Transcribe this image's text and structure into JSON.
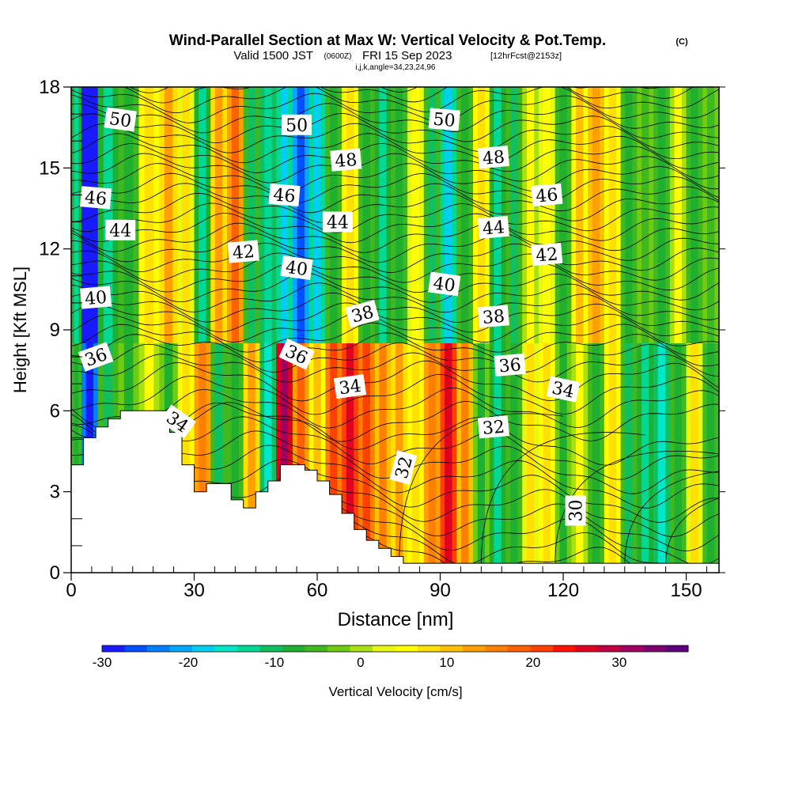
{
  "title": {
    "main": "Wind-Parallel Section at Max W: Vertical Velocity & Pot.Temp.",
    "copyright": "(C)",
    "valid_prefix": "Valid 1500 JST",
    "valid_utc": "(0600Z)",
    "valid_date": "FRI 15 Sep 2023",
    "forecast": "[12hrFcst@2153z]",
    "indices": "i,j,k,angle=34,23,24,96"
  },
  "chart_data": {
    "type": "heatmap",
    "xlabel": "Distance [nm]",
    "ylabel": "Height [Kft MSL]",
    "xlim": [
      0,
      158
    ],
    "ylim": [
      0,
      18
    ],
    "x_ticks": [
      "0",
      "30",
      "60",
      "90",
      "120",
      "150"
    ],
    "y_ticks": [
      "0",
      "3",
      "6",
      "9",
      "12",
      "15",
      "18"
    ],
    "colorbar": {
      "label": "Vertical Velocity [cm/s]",
      "range": [
        -30,
        38
      ],
      "tick_labels": [
        "-30",
        "-20",
        "-10",
        "0",
        "10",
        "20",
        "30"
      ],
      "colors": [
        "#1a1aff",
        "#0050ff",
        "#0080ff",
        "#00a8ff",
        "#00d0f0",
        "#00e8c8",
        "#00d896",
        "#10c060",
        "#20b030",
        "#40b820",
        "#70cc10",
        "#a8e010",
        "#e8f810",
        "#ffff00",
        "#ffe000",
        "#ffc000",
        "#ffa000",
        "#ff8000",
        "#ff6000",
        "#ff4000",
        "#ff1000",
        "#e00020",
        "#c00040",
        "#a00060",
        "#800070",
        "#600080"
      ]
    },
    "velocity_columns": {
      "x_nm": [
        1,
        4,
        9,
        14,
        19,
        24,
        28,
        32,
        36,
        40,
        44,
        48,
        52,
        56,
        60,
        64,
        68,
        72,
        76,
        80,
        84,
        88,
        92,
        96,
        100,
        104,
        108,
        112,
        116,
        120,
        124,
        128,
        132,
        136,
        140,
        144,
        148,
        152,
        156
      ],
      "w_upper_cm_s": [
        -8,
        -30,
        -8,
        -4,
        4,
        8,
        3,
        -8,
        8,
        14,
        -6,
        -10,
        -14,
        -22,
        -14,
        -4,
        4,
        -4,
        -8,
        -4,
        2,
        -6,
        -14,
        -4,
        4,
        -8,
        -6,
        0,
        2,
        -4,
        6,
        10,
        4,
        -4,
        -2,
        -4,
        0,
        -4,
        -2
      ],
      "w_lower_cm_s": [
        -4,
        -24,
        -6,
        -2,
        0,
        -2,
        4,
        12,
        -6,
        -4,
        8,
        -10,
        26,
        14,
        6,
        16,
        22,
        16,
        10,
        8,
        4,
        12,
        20,
        10,
        -2,
        -8,
        -4,
        2,
        4,
        -2,
        0,
        -4,
        4,
        -6,
        -8,
        -10,
        -4,
        2,
        -4
      ]
    },
    "theta_contours": {
      "levels_upper": [
        36,
        38,
        40,
        42,
        44,
        46,
        48,
        50
      ],
      "levels_lower": [
        30,
        32,
        34
      ],
      "labels": [
        {
          "text": "50",
          "x": 12,
          "y": 16.8,
          "angle": 8
        },
        {
          "text": "50",
          "x": 55,
          "y": 16.6,
          "angle": 0
        },
        {
          "text": "50",
          "x": 91,
          "y": 16.8,
          "angle": 5
        },
        {
          "text": "48",
          "x": 67,
          "y": 15.3,
          "angle": -5
        },
        {
          "text": "48",
          "x": 103,
          "y": 15.4,
          "angle": -5
        },
        {
          "text": "46",
          "x": 6,
          "y": 13.9,
          "angle": 5
        },
        {
          "text": "46",
          "x": 52,
          "y": 14.0,
          "angle": 5
        },
        {
          "text": "46",
          "x": 116,
          "y": 14.0,
          "angle": -5
        },
        {
          "text": "44",
          "x": 12,
          "y": 12.7,
          "angle": 0
        },
        {
          "text": "44",
          "x": 65,
          "y": 13.0,
          "angle": 0
        },
        {
          "text": "44",
          "x": 103,
          "y": 12.8,
          "angle": -5
        },
        {
          "text": "42",
          "x": 42,
          "y": 11.9,
          "angle": -5
        },
        {
          "text": "42",
          "x": 116,
          "y": 11.8,
          "angle": -5
        },
        {
          "text": "40",
          "x": 6,
          "y": 10.2,
          "angle": -5
        },
        {
          "text": "40",
          "x": 55,
          "y": 11.3,
          "angle": 8
        },
        {
          "text": "40",
          "x": 91,
          "y": 10.7,
          "angle": 8
        },
        {
          "text": "38",
          "x": 71,
          "y": 9.6,
          "angle": -15
        },
        {
          "text": "38",
          "x": 103,
          "y": 9.5,
          "angle": -5
        },
        {
          "text": "36",
          "x": 6,
          "y": 8.0,
          "angle": -20
        },
        {
          "text": "36",
          "x": 55,
          "y": 8.1,
          "angle": 25
        },
        {
          "text": "36",
          "x": 107,
          "y": 7.7,
          "angle": -5
        },
        {
          "text": "34",
          "x": 26,
          "y": 5.6,
          "angle": 35
        },
        {
          "text": "34",
          "x": 68,
          "y": 6.9,
          "angle": -8
        },
        {
          "text": "34",
          "x": 120,
          "y": 6.8,
          "angle": 12
        },
        {
          "text": "32",
          "x": 103,
          "y": 5.4,
          "angle": -5
        },
        {
          "text": "32",
          "x": 81,
          "y": 3.9,
          "angle": -75
        },
        {
          "text": "30",
          "x": 123,
          "y": 2.3,
          "angle": -90
        }
      ]
    },
    "terrain": {
      "x_nm": [
        0,
        3,
        3,
        6,
        6,
        9,
        9,
        12,
        12,
        24,
        24,
        27,
        27,
        30,
        30,
        33,
        33,
        39,
        39,
        42,
        42,
        45,
        45,
        48,
        48,
        51,
        51,
        54,
        54,
        57,
        57,
        60,
        60,
        63,
        63,
        66,
        66,
        69,
        69,
        72,
        72,
        75,
        75,
        78,
        78,
        81,
        81,
        158
      ],
      "height_kft": [
        4,
        4,
        5,
        5,
        5.4,
        5.4,
        5.7,
        5.7,
        6,
        6,
        5.2,
        5.2,
        4,
        4,
        3,
        3,
        3.3,
        3.3,
        2.7,
        2.7,
        2.4,
        2.4,
        3,
        3,
        3.4,
        3.4,
        4,
        4,
        4,
        4,
        3.8,
        3.8,
        3.4,
        3.4,
        2.9,
        2.9,
        2.2,
        2.2,
        1.6,
        1.6,
        1.2,
        1.2,
        0.9,
        0.9,
        0.6,
        0.6,
        0.35,
        0.35
      ]
    }
  }
}
